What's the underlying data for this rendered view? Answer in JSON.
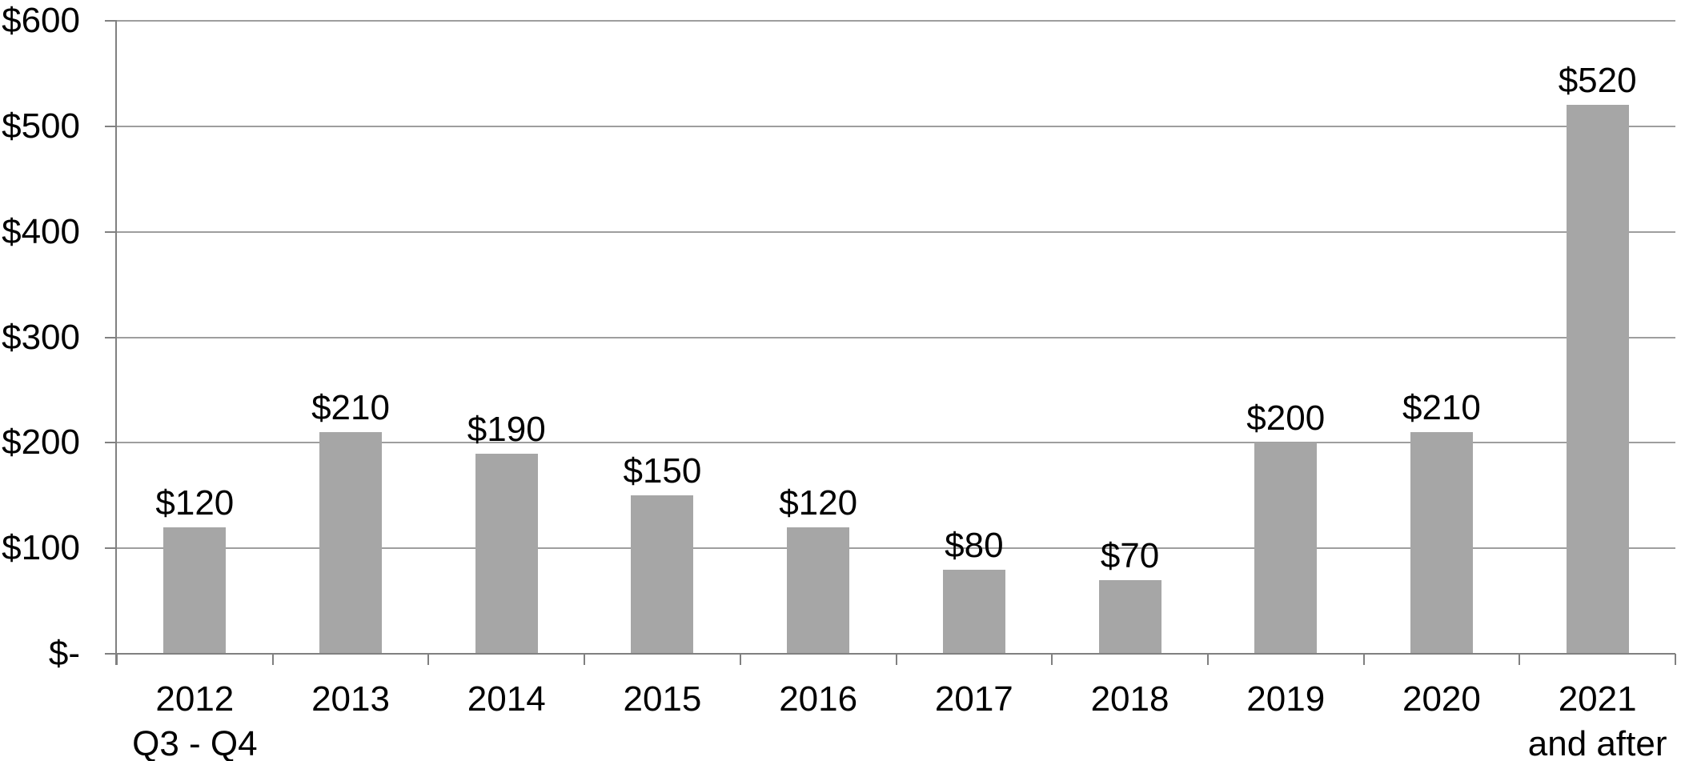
{
  "chart_data": {
    "type": "bar",
    "title": "",
    "xlabel": "",
    "ylabel": "",
    "categories": [
      "2012\nQ3 - Q4",
      "2013",
      "2014",
      "2015",
      "2016",
      "2017",
      "2018",
      "2019",
      "2020",
      "2021\nand after"
    ],
    "values": [
      120,
      210,
      190,
      150,
      120,
      80,
      70,
      200,
      210,
      520
    ],
    "bar_labels": [
      "$120",
      "$210",
      "$190",
      "$150",
      "$120",
      "$80",
      "$70",
      "$200",
      "$210",
      "$520"
    ],
    "ylim": [
      0,
      600
    ],
    "y_tick_step": 100,
    "y_tick_labels": [
      "$-",
      "$100",
      "$200",
      "$300",
      "$400",
      "$500",
      "$600"
    ],
    "grid": true,
    "legend_position": "none",
    "colors": {
      "bar": "#A6A6A6",
      "gridline": "#9E9E9E",
      "axis": "#808080",
      "label_text": "#000000",
      "background": "#FFFFFF"
    }
  }
}
